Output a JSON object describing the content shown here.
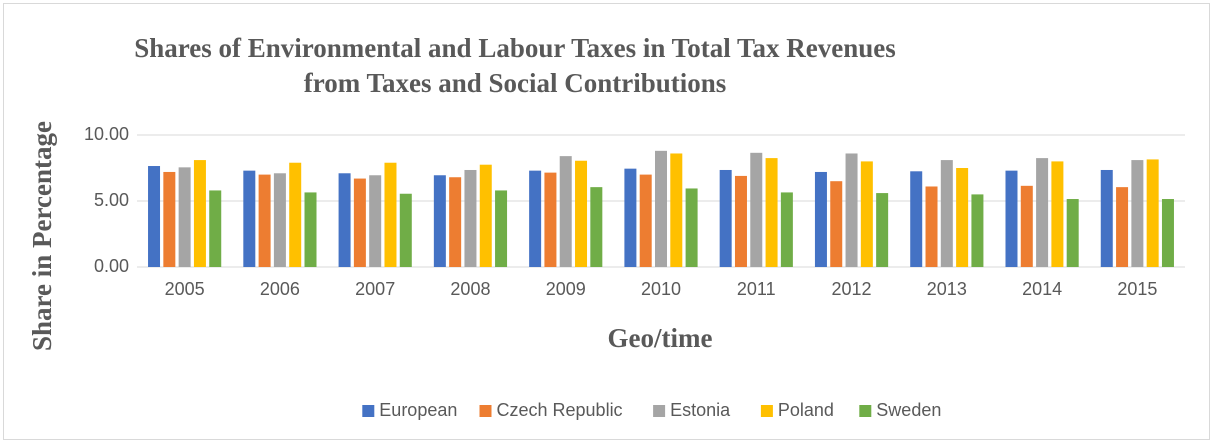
{
  "chart_data": {
    "type": "bar",
    "title": [
      "Shares of Environmental and Labour Taxes in Total Tax Revenues",
      "from Taxes and Social Contributions"
    ],
    "x_label": "Geo/time",
    "y_label": "Share in Percentage",
    "categories": [
      "2005",
      "2006",
      "2007",
      "2008",
      "2009",
      "2010",
      "2011",
      "2012",
      "2013",
      "2014",
      "2015"
    ],
    "series": [
      {
        "name": "European",
        "color": "#4472c4",
        "values": [
          7.65,
          7.3,
          7.1,
          6.95,
          7.3,
          7.45,
          7.35,
          7.2,
          7.25,
          7.3,
          7.35
        ]
      },
      {
        "name": "Czech Republic",
        "color": "#ed7d31",
        "values": [
          7.2,
          7.0,
          6.7,
          6.8,
          7.15,
          7.0,
          6.9,
          6.5,
          6.1,
          6.15,
          6.05
        ]
      },
      {
        "name": "Estonia",
        "color": "#a5a5a5",
        "values": [
          7.55,
          7.1,
          6.95,
          7.35,
          8.4,
          8.8,
          8.65,
          8.6,
          8.1,
          8.25,
          8.1
        ]
      },
      {
        "name": "Poland",
        "color": "#ffc000",
        "values": [
          8.1,
          7.9,
          7.9,
          7.75,
          8.05,
          8.6,
          8.25,
          8.0,
          7.5,
          8.0,
          8.15
        ]
      },
      {
        "name": "Sweden",
        "color": "#70ad47",
        "values": [
          5.8,
          5.65,
          5.55,
          5.8,
          6.05,
          5.95,
          5.65,
          5.6,
          5.5,
          5.15,
          5.15
        ]
      }
    ],
    "ylim": [
      0,
      10
    ],
    "yticks": [
      {
        "value": 0,
        "label": "0.00"
      },
      {
        "value": 5,
        "label": "5.00"
      },
      {
        "value": 10,
        "label": "10.00"
      }
    ],
    "grid": true,
    "legend": "bottom"
  }
}
